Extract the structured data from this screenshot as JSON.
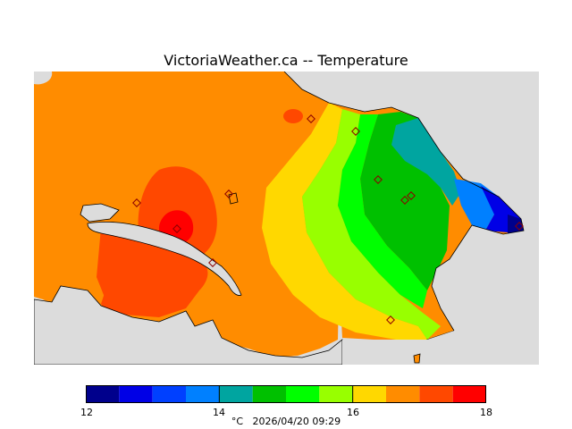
{
  "title": "VictoriaWeather.ca -- Temperature",
  "colors": {
    "land_background": "#dcdcdc",
    "bins": [
      "#00008c",
      "#0000e6",
      "#0040ff",
      "#0080ff",
      "#00a5a0",
      "#00c000",
      "#00ff00",
      "#98ff00",
      "#ffd800",
      "#ff8c00",
      "#ff4800",
      "#ff0000"
    ]
  },
  "colorbar": {
    "min": 12,
    "max": 18,
    "labels": [
      "12",
      "14",
      "16",
      "18"
    ]
  },
  "footer": {
    "unit": "°C",
    "timestamp": "2026/04/20 09:29"
  },
  "station_markers": 11
}
